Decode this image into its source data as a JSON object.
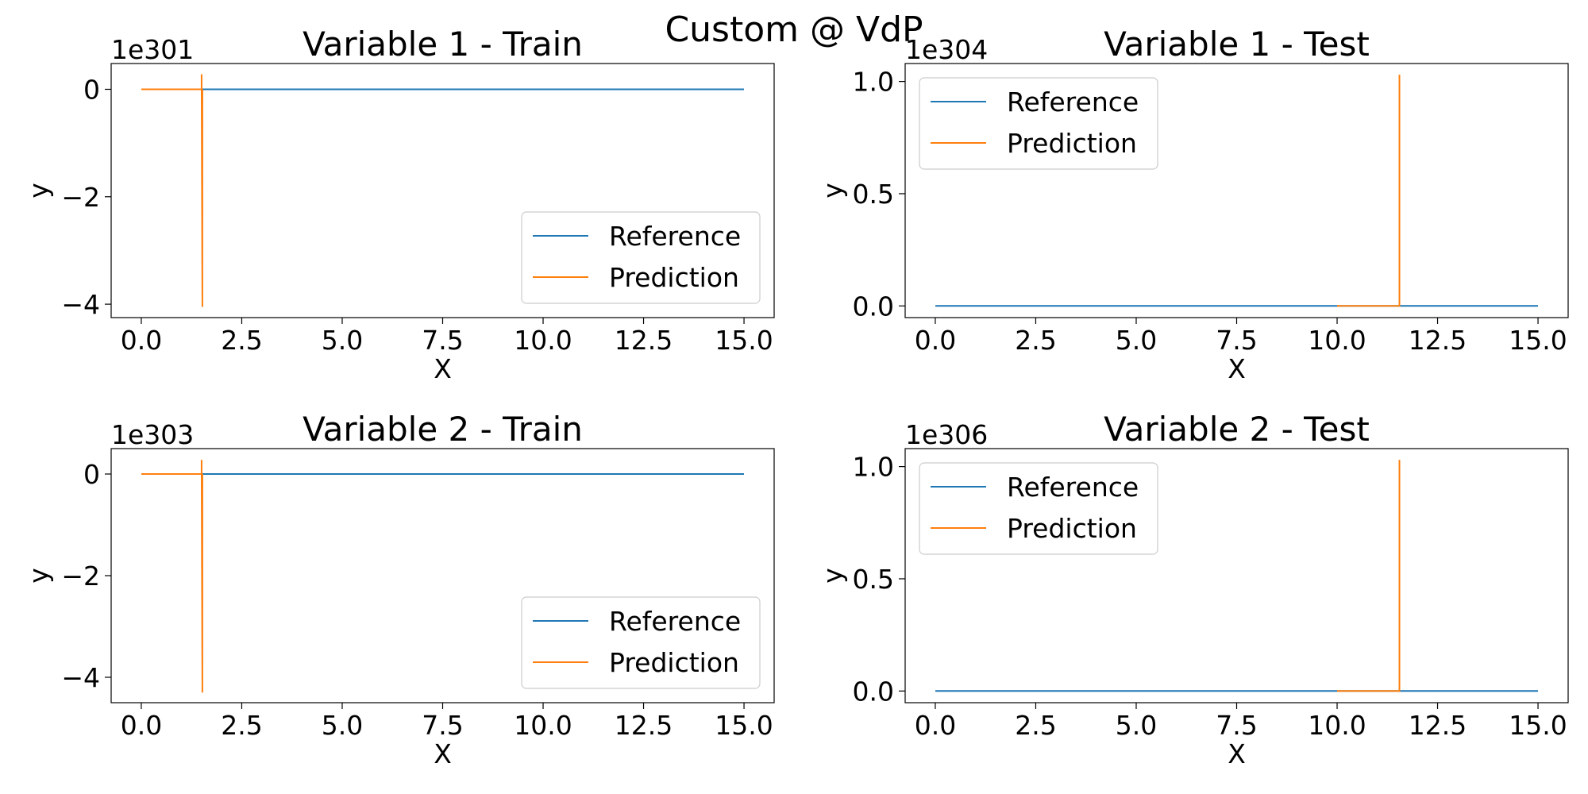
{
  "figure": {
    "suptitle": "Custom @ VdP"
  },
  "colors": {
    "reference": "#1f77b4",
    "prediction": "#ff7f0e"
  },
  "chart_data": [
    {
      "id": "v1-train",
      "type": "line",
      "title": "Variable 1 - Train",
      "xlabel": "X",
      "ylabel": "y",
      "offset_text": "1e301",
      "xlim": [
        -0.75,
        15.75
      ],
      "ylim": [
        -4.25,
        0.48
      ],
      "xticks": [
        0.0,
        2.5,
        5.0,
        7.5,
        10.0,
        12.5,
        15.0
      ],
      "xtick_labels": [
        "0.0",
        "2.5",
        "5.0",
        "7.5",
        "10.0",
        "12.5",
        "15.0"
      ],
      "yticks": [
        0,
        -2,
        -4
      ],
      "ytick_labels": [
        "0",
        "−2",
        "−4"
      ],
      "legend": {
        "position": "lower right",
        "entries": [
          "Reference",
          "Prediction"
        ]
      },
      "series": [
        {
          "name": "Reference",
          "color_key": "reference",
          "x": [
            0,
            15
          ],
          "y": [
            0,
            0
          ]
        },
        {
          "name": "Prediction",
          "color_key": "prediction",
          "x": [
            0,
            1.5,
            1.5,
            1.52,
            1.52
          ],
          "y": [
            0,
            0,
            0.28,
            -4.05,
            0
          ]
        }
      ]
    },
    {
      "id": "v1-test",
      "type": "line",
      "title": "Variable 1 - Test",
      "xlabel": "X",
      "ylabel": "y",
      "offset_text": "1e304",
      "xlim": [
        -0.75,
        15.75
      ],
      "ylim": [
        -0.052,
        1.08
      ],
      "xticks": [
        0.0,
        2.5,
        5.0,
        7.5,
        10.0,
        12.5,
        15.0
      ],
      "xtick_labels": [
        "0.0",
        "2.5",
        "5.0",
        "7.5",
        "10.0",
        "12.5",
        "15.0"
      ],
      "yticks": [
        0.0,
        0.5,
        1.0
      ],
      "ytick_labels": [
        "0.0",
        "0.5",
        "1.0"
      ],
      "legend": {
        "position": "upper left",
        "entries": [
          "Reference",
          "Prediction"
        ]
      },
      "series": [
        {
          "name": "Reference",
          "color_key": "reference",
          "x": [
            0,
            15
          ],
          "y": [
            0,
            0
          ]
        },
        {
          "name": "Prediction",
          "color_key": "prediction",
          "x": [
            10.0,
            11.55,
            11.55
          ],
          "y": [
            0,
            0,
            1.03
          ]
        }
      ]
    },
    {
      "id": "v2-train",
      "type": "line",
      "title": "Variable 2 - Train",
      "xlabel": "X",
      "ylabel": "y",
      "offset_text": "1e303",
      "xlim": [
        -0.75,
        15.75
      ],
      "ylim": [
        -4.5,
        0.5
      ],
      "xticks": [
        0.0,
        2.5,
        5.0,
        7.5,
        10.0,
        12.5,
        15.0
      ],
      "xtick_labels": [
        "0.0",
        "2.5",
        "5.0",
        "7.5",
        "10.0",
        "12.5",
        "15.0"
      ],
      "yticks": [
        0,
        -2,
        -4
      ],
      "ytick_labels": [
        "0",
        "−2",
        "−4"
      ],
      "legend": {
        "position": "lower right",
        "entries": [
          "Reference",
          "Prediction"
        ]
      },
      "series": [
        {
          "name": "Reference",
          "color_key": "reference",
          "x": [
            0,
            15
          ],
          "y": [
            0,
            0
          ]
        },
        {
          "name": "Prediction",
          "color_key": "prediction",
          "x": [
            0,
            1.5,
            1.5,
            1.52,
            1.52
          ],
          "y": [
            0,
            0,
            0.28,
            -4.3,
            0
          ]
        }
      ]
    },
    {
      "id": "v2-test",
      "type": "line",
      "title": "Variable 2 - Test",
      "xlabel": "X",
      "ylabel": "y",
      "offset_text": "1e306",
      "xlim": [
        -0.75,
        15.75
      ],
      "ylim": [
        -0.052,
        1.08
      ],
      "xticks": [
        0.0,
        2.5,
        5.0,
        7.5,
        10.0,
        12.5,
        15.0
      ],
      "xtick_labels": [
        "0.0",
        "2.5",
        "5.0",
        "7.5",
        "10.0",
        "12.5",
        "15.0"
      ],
      "yticks": [
        0.0,
        0.5,
        1.0
      ],
      "ytick_labels": [
        "0.0",
        "0.5",
        "1.0"
      ],
      "legend": {
        "position": "upper left",
        "entries": [
          "Reference",
          "Prediction"
        ]
      },
      "series": [
        {
          "name": "Reference",
          "color_key": "reference",
          "x": [
            0,
            15
          ],
          "y": [
            0,
            0
          ]
        },
        {
          "name": "Prediction",
          "color_key": "prediction",
          "x": [
            10.0,
            11.55,
            11.55
          ],
          "y": [
            0,
            0,
            1.03
          ]
        }
      ]
    }
  ]
}
